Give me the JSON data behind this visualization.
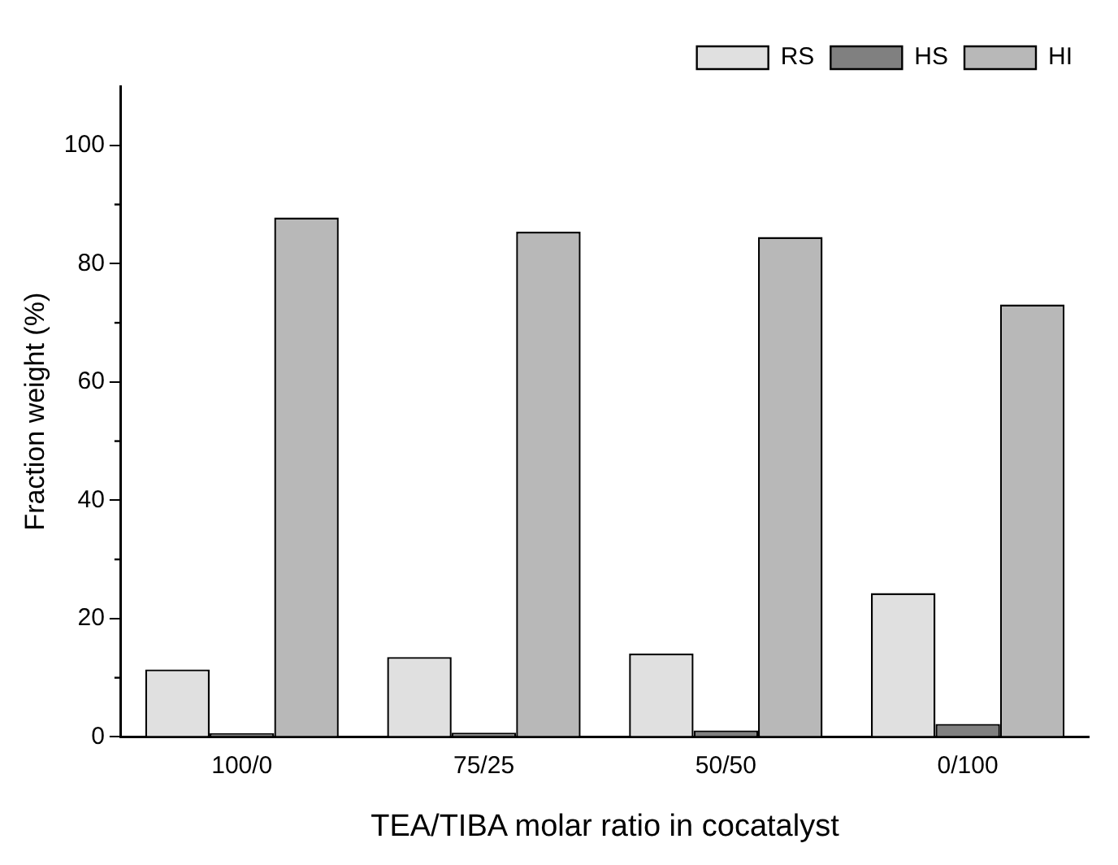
{
  "chart_data": {
    "type": "bar",
    "xlabel": "TEA/TIBA molar ratio in cocatalyst",
    "ylabel": "Fraction weight (%)",
    "categories": [
      "100/0",
      "75/25",
      "50/50",
      "0/100"
    ],
    "series": [
      {
        "name": "RS",
        "color": "#e0e0e0",
        "values": [
          11.4,
          13.5,
          14.1,
          24.3
        ]
      },
      {
        "name": "HS",
        "color": "#808080",
        "values": [
          0.6,
          0.7,
          1.1,
          2.2
        ]
      },
      {
        "name": "HI",
        "color": "#b8b8b8",
        "values": [
          87.8,
          85.4,
          84.5,
          73.1
        ]
      }
    ],
    "ylim": [
      0,
      110
    ],
    "yticks": [
      0,
      20,
      40,
      60,
      80,
      100
    ],
    "grid": false,
    "legend": "top right"
  }
}
